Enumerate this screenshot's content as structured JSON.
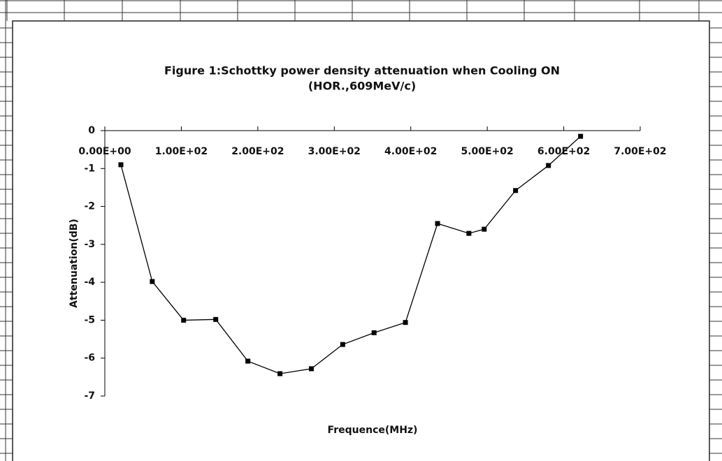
{
  "chart_data": {
    "type": "line",
    "title": "Figure 1:Schottky power density attenuation when Cooling ON",
    "subtitle": "(HOR.,609MeV/c)",
    "x_label": "Frequence(MHz)",
    "y_label": "Attenuation(dB)",
    "series": [
      {
        "name": "Attenuation",
        "color": "#000000",
        "x": [
          21,
          62,
          103,
          145,
          187,
          229,
          270,
          311,
          352,
          393,
          435,
          476,
          496,
          537,
          580,
          622
        ],
        "values": [
          -0.9,
          -3.98,
          -5.0,
          -4.98,
          -6.08,
          -6.41,
          -6.28,
          -5.64,
          -5.33,
          -5.06,
          -2.45,
          -2.71,
          -2.6,
          -1.58,
          -0.92,
          -0.15
        ]
      }
    ],
    "xlim": [
      0,
      700
    ],
    "xticks": [
      {
        "value": 0,
        "label": "0.00E+00"
      },
      {
        "value": 100,
        "label": "1.00E+02"
      },
      {
        "value": 200,
        "label": "2.00E+02"
      },
      {
        "value": 300,
        "label": "3.00E+02"
      },
      {
        "value": 400,
        "label": "4.00E+02"
      },
      {
        "value": 500,
        "label": "5.00E+02"
      },
      {
        "value": 600,
        "label": "6.00E+02"
      },
      {
        "value": 700,
        "label": "7.00E+02"
      }
    ],
    "ylim": [
      -7,
      0
    ],
    "yticks": [
      0,
      -1,
      -2,
      -3,
      -4,
      -5,
      -6,
      -7
    ],
    "grid": false
  }
}
